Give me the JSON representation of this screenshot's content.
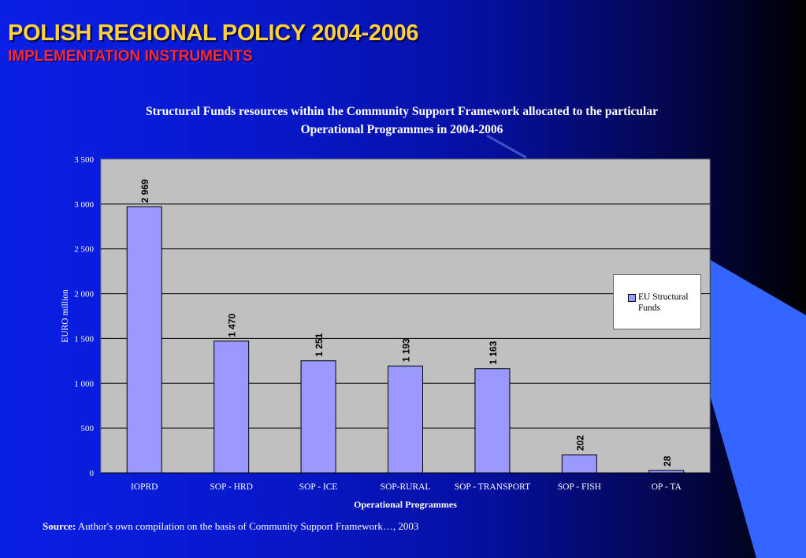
{
  "slide": {
    "title": "POLISH REGIONAL POLICY 2004-2006",
    "subtitle": "IMPLEMENTATION INSTRUMENTS",
    "source_label": "Source:",
    "source_text": "Author's own compilation on the basis of Community Support Framework…, 2003",
    "colors": {
      "title": "#ffd23a",
      "subtitle": "#ff2a2a",
      "accent_shape": "#3366ff",
      "plot_background": "#c0c0c0",
      "bar_fill": "#9999ff"
    }
  },
  "chart_data": {
    "type": "bar",
    "title_lines": [
      "Structural Funds resources within the Community Support Framework allocated to the particular",
      "Operational Programmes in 2004-2006"
    ],
    "xlabel": "Operational Programmes",
    "ylabel": "EURO million",
    "categories": [
      "IOPRD",
      "SOP - HRD",
      "SOP - ICE",
      "SOP-RURAL",
      "SOP - TRANSPORT",
      "SOP - FISH",
      "OP - TA"
    ],
    "series": [
      {
        "name": "EU Structural Funds",
        "values": [
          2969,
          1470,
          1251,
          1193,
          1163,
          202,
          28
        ]
      }
    ],
    "data_labels": [
      "2 969",
      "1 470",
      "1 251",
      "1 193",
      "1 163",
      "202",
      "28"
    ],
    "ylim": [
      0,
      3500
    ],
    "yticks": [
      0,
      500,
      1000,
      1500,
      2000,
      2500,
      3000,
      3500
    ],
    "ytick_labels": [
      "0",
      "500",
      "1 000",
      "1 500",
      "2 000",
      "2 500",
      "3 000",
      "3 500"
    ],
    "grid": true,
    "legend_position": "right"
  }
}
